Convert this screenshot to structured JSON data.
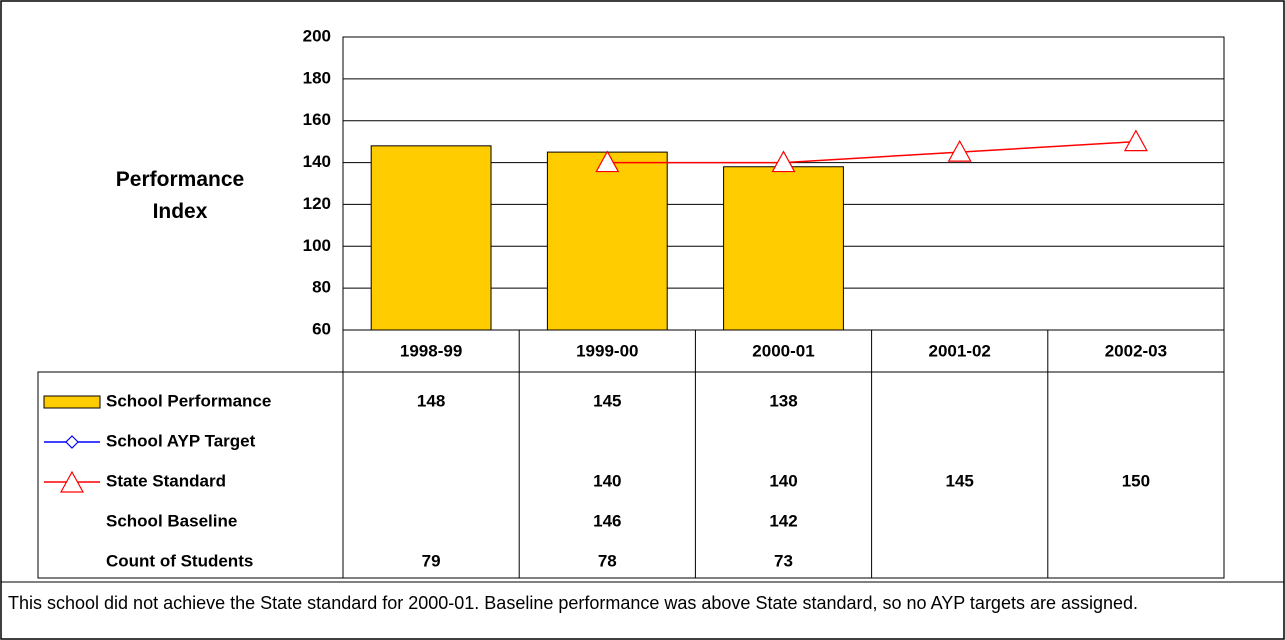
{
  "chart_data": {
    "type": "bar",
    "y_label": "Performance Index",
    "categories": [
      "1998-99",
      "1999-00",
      "2000-01",
      "2001-02",
      "2002-03"
    ],
    "ylim": [
      60,
      200
    ],
    "yticks": [
      60,
      80,
      100,
      120,
      140,
      160,
      180,
      200
    ],
    "grid": true,
    "series": [
      {
        "name": "School Performance",
        "mark": "bar",
        "color": "#ffcc00",
        "values": [
          148,
          145,
          138,
          null,
          null
        ]
      },
      {
        "name": "School AYP Target",
        "mark": "line-diamond",
        "color": "#0000ff",
        "values": [
          null,
          null,
          null,
          null,
          null
        ]
      },
      {
        "name": "State Standard",
        "mark": "line-triangle",
        "color": "#ff0000",
        "values": [
          null,
          140,
          140,
          145,
          150
        ]
      },
      {
        "name": "School Baseline",
        "mark": "none",
        "values": [
          null,
          146,
          142,
          null,
          null
        ]
      },
      {
        "name": "Count of Students",
        "mark": "none",
        "values": [
          79,
          78,
          73,
          null,
          null
        ]
      }
    ],
    "note": "This school did not achieve the State standard for 2000-01. Baseline performance was above State standard, so no AYP targets are assigned."
  }
}
